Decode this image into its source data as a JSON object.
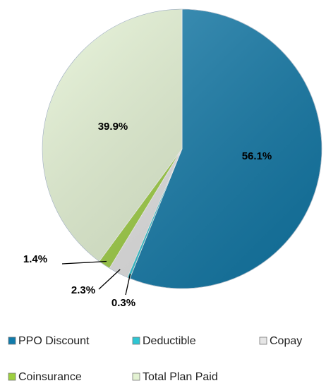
{
  "chart_data": {
    "type": "pie",
    "categories": [
      "PPO Discount",
      "Deductible",
      "Copay",
      "Coinsurance",
      "Total Plan Paid"
    ],
    "values": [
      56.1,
      0.3,
      2.3,
      1.4,
      39.9
    ],
    "value_labels": [
      "56.1%",
      "0.3%",
      "2.3%",
      "1.4%",
      "39.9%"
    ],
    "colors": [
      "#117bab",
      "#2ec6d3",
      "#e6e6e6",
      "#9dcf3f",
      "#e3f2d2"
    ],
    "legend": "bottom"
  }
}
